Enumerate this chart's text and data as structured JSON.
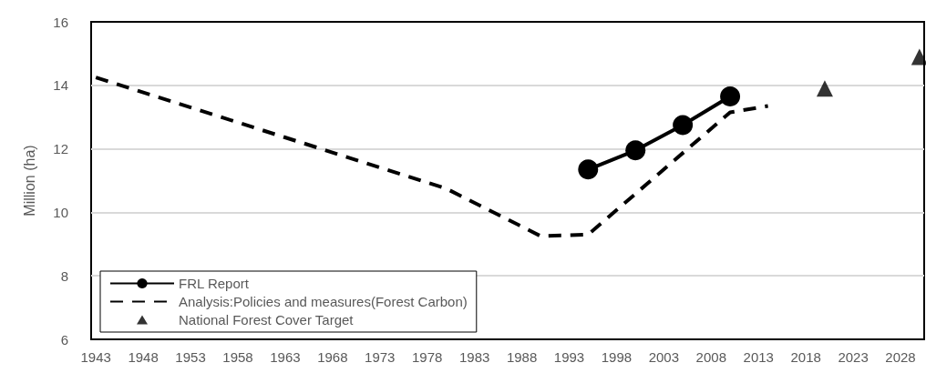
{
  "chart_data": {
    "type": "line",
    "ylabel": "Million (ha)",
    "xlim": [
      1942.5,
      2030.5
    ],
    "xticks": [
      1943,
      1948,
      1953,
      1958,
      1963,
      1968,
      1973,
      1978,
      1983,
      1988,
      1993,
      1998,
      2003,
      2008,
      2013,
      2018,
      2023,
      2028
    ],
    "ylim": [
      6,
      16
    ],
    "yticks": [
      6,
      8,
      10,
      12,
      14,
      16
    ],
    "grid": "y",
    "legend": "bottom left",
    "series": [
      {
        "name": "FRL Report",
        "color": "#000000",
        "marker": "circle",
        "line_style": "solid",
        "x": [
          1995,
          2000,
          2005,
          2010
        ],
        "values": [
          11.35,
          11.95,
          12.75,
          13.65
        ]
      },
      {
        "name": "Analysis:Policies and measures(Forest Carbon)",
        "color": "#000000",
        "marker": "none",
        "line_style": "dashed",
        "x": [
          1943,
          1980,
          1990,
          1995,
          2010,
          2014
        ],
        "values": [
          14.25,
          10.75,
          9.25,
          9.3,
          13.15,
          13.35
        ]
      },
      {
        "name": "National Forest Cover Target",
        "type": "scatter",
        "color": "#000000",
        "marker": "triangle",
        "x": [
          2020,
          2030
        ],
        "values": [
          13.9,
          14.9
        ]
      }
    ]
  }
}
